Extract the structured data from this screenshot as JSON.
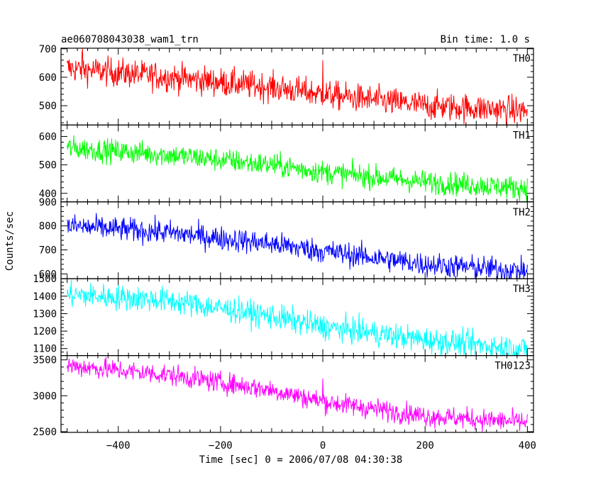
{
  "chart_data": {
    "type": "line",
    "title": "ae060708043038_wam1_trn",
    "subtitle": "Bin time: 1.0 s",
    "xlabel": "Time [sec] 0 = 2006/07/08 04:30:38",
    "ylabel": "Counts/sec",
    "xlim": [
      -512,
      412
    ],
    "x_ticks": [
      -400,
      -200,
      0,
      200,
      400
    ],
    "x_tick_labels": [
      "−400",
      "−200",
      "0",
      "200",
      "400"
    ],
    "x_start": -500,
    "x_end": 400,
    "bin_time": 1.0,
    "grid": false,
    "legend": "none",
    "panels": [
      {
        "name": "TH0",
        "color": "#ff0000",
        "ylim": [
          432,
          702
        ],
        "y_ticks": [
          500,
          600,
          700
        ],
        "trend": [
          [
            -500,
            632
          ],
          [
            -300,
            600
          ],
          [
            -100,
            565
          ],
          [
            0,
            540
          ],
          [
            200,
            500
          ],
          [
            400,
            482
          ]
        ],
        "noise_amplitude": 55,
        "spikes": [
          [
            0,
            660
          ],
          [
            -470,
            700
          ]
        ]
      },
      {
        "name": "TH1",
        "color": "#00ff00",
        "ylim": [
          370,
          640
        ],
        "y_ticks": [
          400,
          500,
          600
        ],
        "trend": [
          [
            -500,
            560
          ],
          [
            -300,
            535
          ],
          [
            -100,
            500
          ],
          [
            0,
            475
          ],
          [
            200,
            440
          ],
          [
            400,
            418
          ]
        ],
        "noise_amplitude": 45,
        "spikes": []
      },
      {
        "name": "TH2",
        "color": "#0000ff",
        "ylim": [
          580,
          900
        ],
        "y_ticks": [
          600,
          700,
          800,
          900
        ],
        "trend": [
          [
            -500,
            800
          ],
          [
            -300,
            772
          ],
          [
            -100,
            725
          ],
          [
            0,
            695
          ],
          [
            200,
            640
          ],
          [
            400,
            612
          ]
        ],
        "noise_amplitude": 55,
        "spikes": []
      },
      {
        "name": "TH3",
        "color": "#00ffff",
        "ylim": [
          1060,
          1500
        ],
        "y_ticks": [
          1100,
          1200,
          1300,
          1400,
          1500
        ],
        "trend": [
          [
            -500,
            1410
          ],
          [
            -300,
            1375
          ],
          [
            -100,
            1285
          ],
          [
            0,
            1225
          ],
          [
            200,
            1150
          ],
          [
            400,
            1095
          ]
        ],
        "noise_amplitude": 80,
        "spikes": []
      },
      {
        "name": "TH0123",
        "color": "#ff00ff",
        "ylim": [
          2490,
          3560
        ],
        "y_ticks": [
          2500,
          3000,
          3500
        ],
        "trend": [
          [
            -500,
            3420
          ],
          [
            -300,
            3290
          ],
          [
            -100,
            3080
          ],
          [
            0,
            2920
          ],
          [
            200,
            2720
          ],
          [
            400,
            2630
          ]
        ],
        "noise_amplitude": 160,
        "spikes": [
          [
            0,
            3240
          ]
        ]
      }
    ]
  }
}
